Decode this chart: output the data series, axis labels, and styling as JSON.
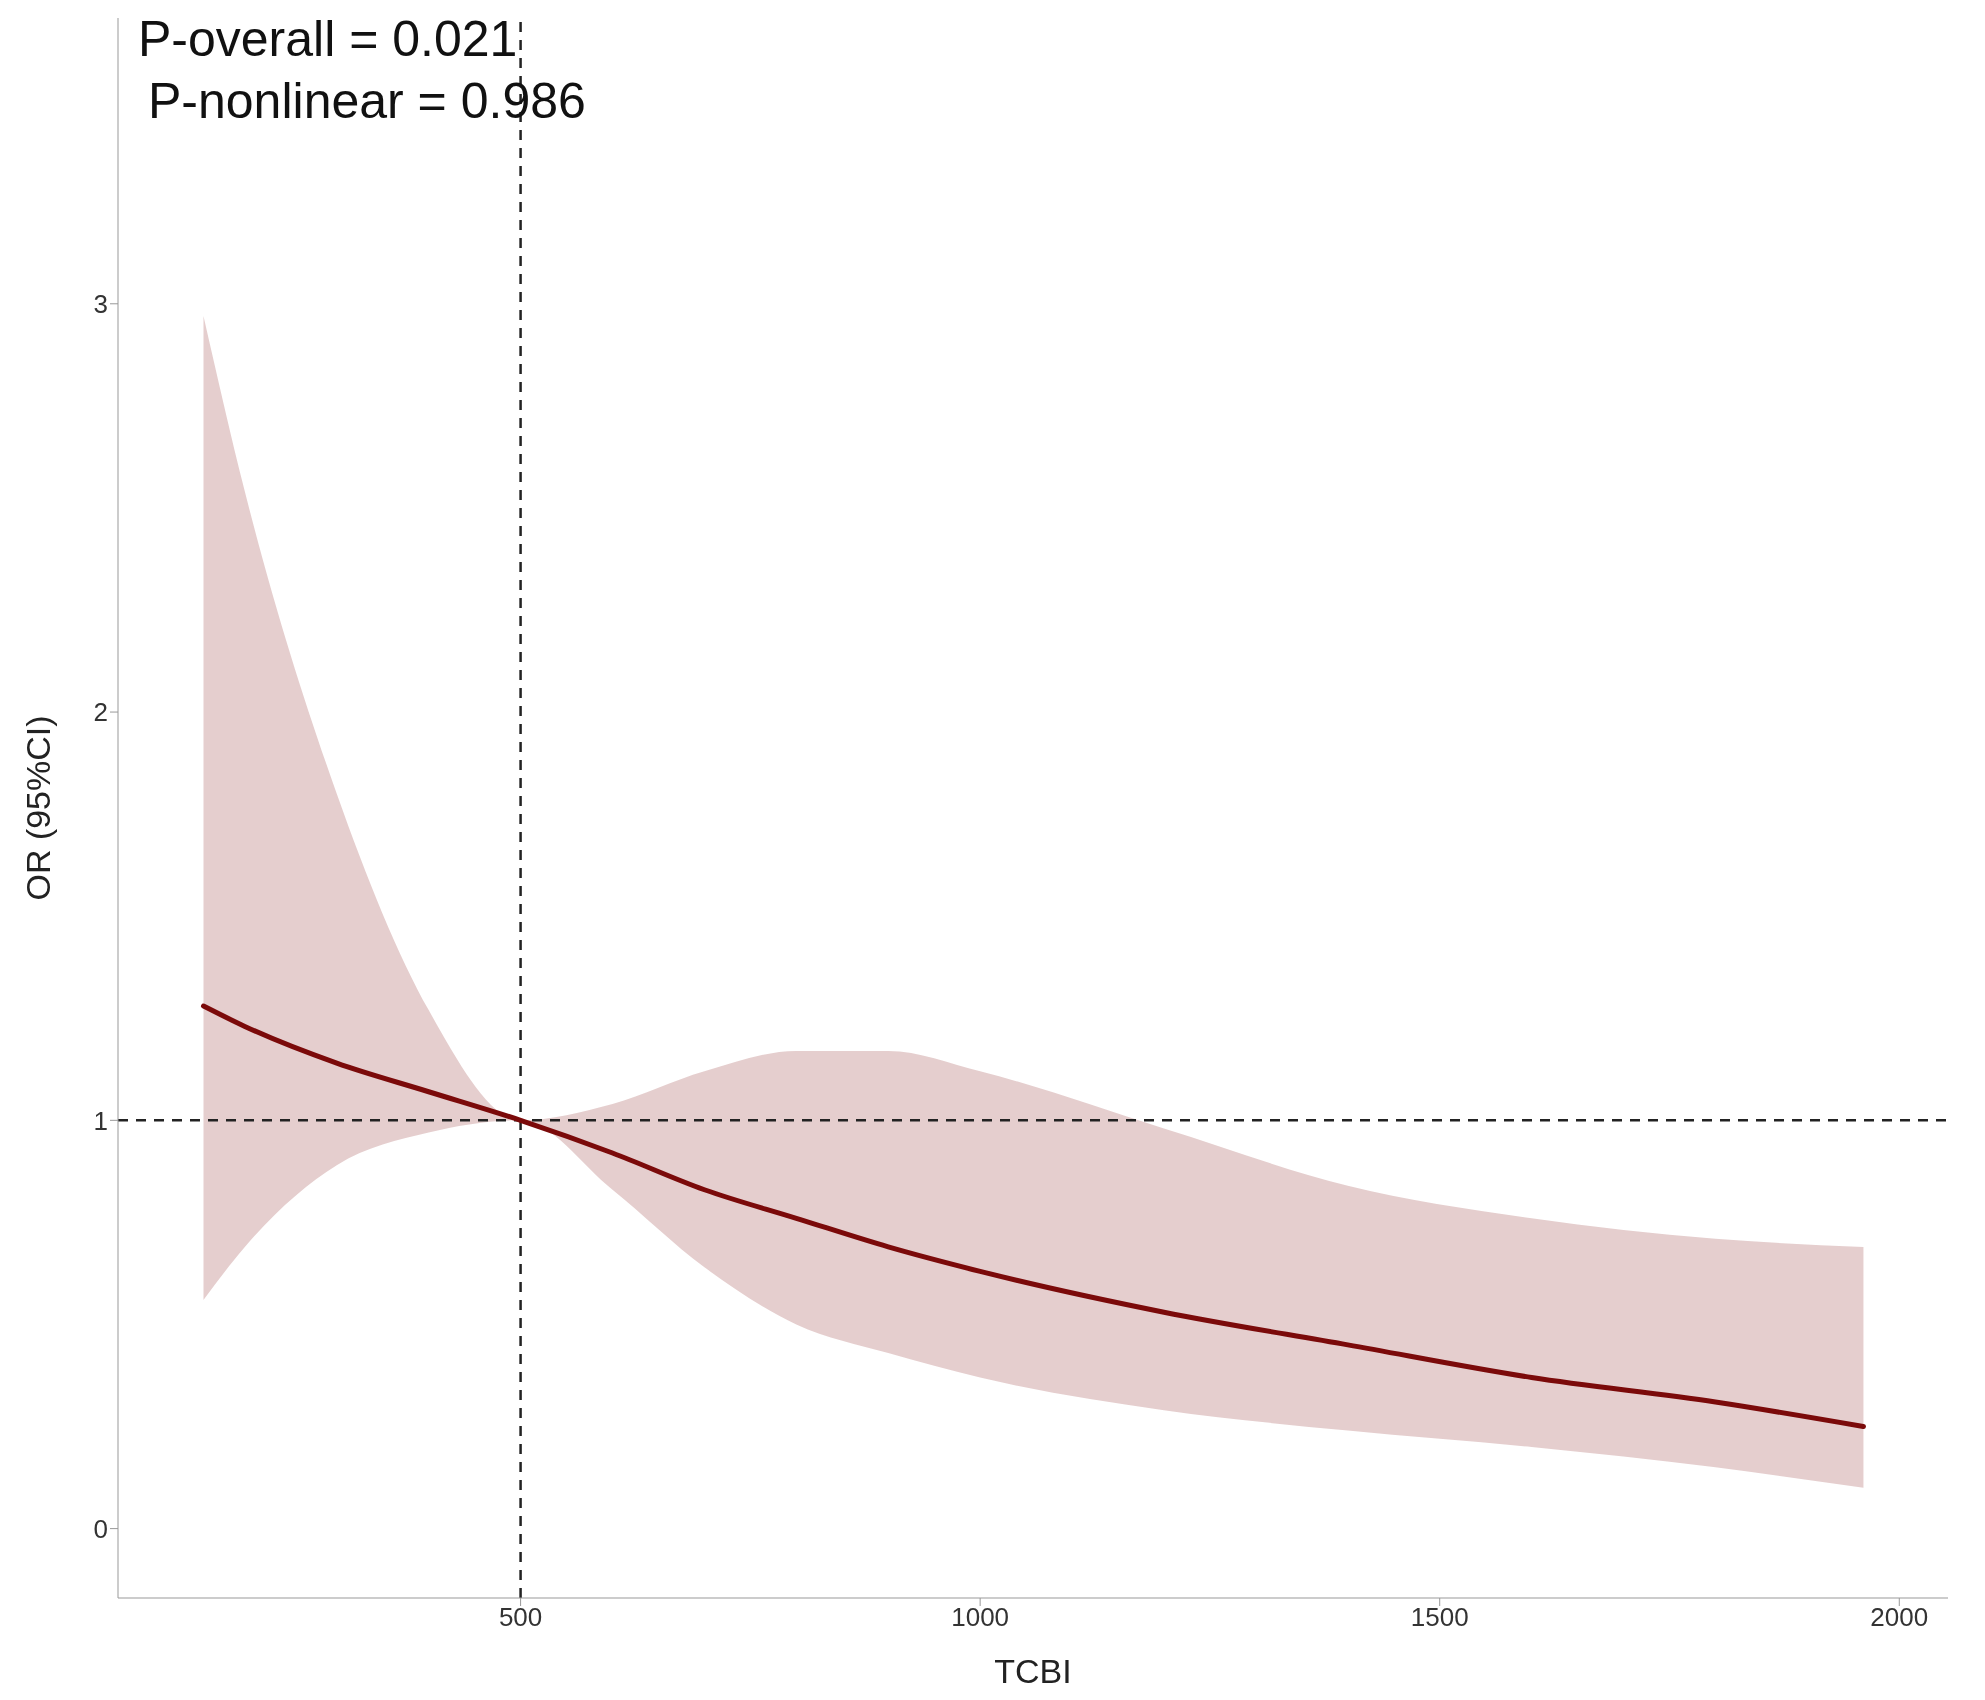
{
  "chart_data": {
    "type": "line",
    "xlabel": "TCBI",
    "ylabel": "OR (95%CI)",
    "annotations": [
      "P-overall = 0.021",
      "P-nonlinear = 0.986"
    ],
    "x": [
      155,
      200,
      300,
      400,
      500,
      600,
      700,
      800,
      900,
      1000,
      1200,
      1400,
      1600,
      1800,
      1961
    ],
    "series": [
      {
        "color": "#7b0a0a",
        "values": [
          1.28,
          1.23,
          1.14,
          1.07,
          1.0,
          0.92,
          0.83,
          0.76,
          0.69,
          0.63,
          0.53,
          0.45,
          0.37,
          0.31,
          0.25
        ],
        "lower": [
          0.56,
          0.69,
          0.89,
          0.97,
          1.0,
          0.83,
          0.64,
          0.5,
          0.43,
          0.37,
          0.29,
          0.24,
          0.2,
          0.15,
          0.1
        ],
        "upper": [
          2.97,
          2.54,
          1.8,
          1.27,
          1.0,
          1.04,
          1.12,
          1.17,
          1.17,
          1.12,
          0.98,
          0.84,
          0.76,
          0.71,
          0.69
        ]
      }
    ],
    "xlim": [
      62,
      2053
    ],
    "xticks": [
      500,
      1000,
      1500,
      2000
    ],
    "ylim": [
      -0.17,
      3.7
    ],
    "yticks": [
      0,
      1,
      2,
      3
    ],
    "ref_lines": [
      {
        "axis": "x",
        "value": 500,
        "color": "#222222",
        "line_style": "dashed"
      },
      {
        "axis": "y",
        "value": 1,
        "color": "#222222",
        "line_style": "dashed"
      }
    ],
    "grid": false,
    "legend": false,
    "marker": "none",
    "line_style": "solid"
  }
}
